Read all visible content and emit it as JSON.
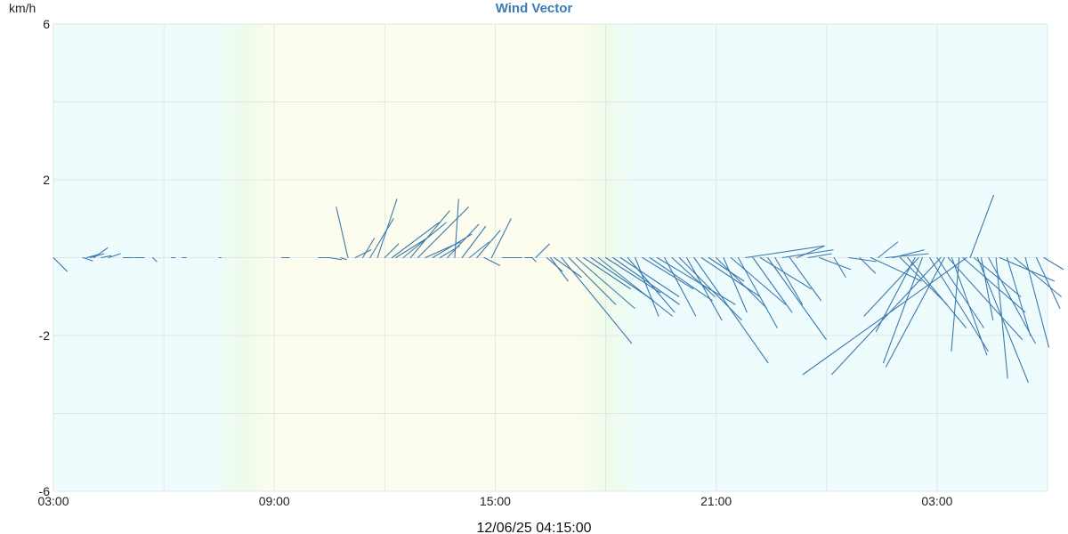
{
  "chart_data": {
    "type": "vector",
    "title": "Wind Vector",
    "ylabel": "km/h",
    "ylim": [
      -6,
      6
    ],
    "y_ticks": [
      "6",
      "2",
      "-2",
      "-6"
    ],
    "y_tick_values": [
      6,
      2,
      -2,
      -6
    ],
    "x_ticks": [
      "03:00",
      "09:00",
      "15:00",
      "21:00",
      "03:00"
    ],
    "x_tick_hours": [
      0,
      6,
      12,
      18,
      24
    ],
    "x_range_hours": [
      0,
      27.0
    ],
    "timestamp": "12/06/25 04:15:00",
    "grid": true,
    "day_period_hours": [
      6.0,
      14.0
    ],
    "series_color": "#3d79ad",
    "background_colors": {
      "night": "#eefcfd",
      "day": "#fdfdef",
      "twilight": "#eefbe9",
      "grid": "#e3e6e8"
    },
    "vectors": [
      {
        "t": 0.0,
        "u": 0.35,
        "v": -0.35
      },
      {
        "t": 0.8,
        "u": 0.25,
        "v": -0.08
      },
      {
        "t": 0.9,
        "u": 0.3,
        "v": 0.08
      },
      {
        "t": 1.0,
        "u": 0.35,
        "v": 0.1
      },
      {
        "t": 1.1,
        "u": 0.35,
        "v": 0.25
      },
      {
        "t": 1.3,
        "u": 0.25,
        "v": 0.05
      },
      {
        "t": 1.5,
        "u": 0.3,
        "v": 0.1
      },
      {
        "t": 1.9,
        "u": 0.25,
        "v": 0.0
      },
      {
        "t": 2.2,
        "u": 0.25,
        "v": 0.0
      },
      {
        "t": 2.7,
        "u": 0.1,
        "v": -0.1
      },
      {
        "t": 3.2,
        "u": 0.1,
        "v": 0.0
      },
      {
        "t": 3.5,
        "u": 0.1,
        "v": 0.0
      },
      {
        "t": 4.5,
        "u": 0.05,
        "v": 0.0
      },
      {
        "t": 6.2,
        "u": 0.2,
        "v": 0.0
      },
      {
        "t": 7.2,
        "u": 0.3,
        "v": 0.0
      },
      {
        "t": 7.5,
        "u": 0.3,
        "v": -0.05
      },
      {
        "t": 7.8,
        "u": 0.15,
        "v": -0.05
      },
      {
        "t": 8.0,
        "u": -0.3,
        "v": 1.3
      },
      {
        "t": 8.2,
        "u": 0.4,
        "v": 0.2
      },
      {
        "t": 8.4,
        "u": 0.3,
        "v": 0.5
      },
      {
        "t": 8.6,
        "u": 0.6,
        "v": 1.0
      },
      {
        "t": 8.8,
        "u": 0.5,
        "v": 1.5
      },
      {
        "t": 9.0,
        "u": 0.35,
        "v": 0.35
      },
      {
        "t": 9.2,
        "u": 1.2,
        "v": 0.9
      },
      {
        "t": 9.3,
        "u": 0.8,
        "v": 0.5
      },
      {
        "t": 9.5,
        "u": 1.1,
        "v": 0.9
      },
      {
        "t": 9.7,
        "u": 1.0,
        "v": 1.2
      },
      {
        "t": 9.9,
        "u": 1.3,
        "v": 1.3
      },
      {
        "t": 10.1,
        "u": 0.9,
        "v": 0.4
      },
      {
        "t": 10.3,
        "u": 1.0,
        "v": 0.6
      },
      {
        "t": 10.5,
        "u": 0.5,
        "v": 0.3
      },
      {
        "t": 10.7,
        "u": 0.8,
        "v": 0.85
      },
      {
        "t": 10.9,
        "u": 0.1,
        "v": 1.5
      },
      {
        "t": 11.1,
        "u": 0.6,
        "v": 0.8
      },
      {
        "t": 11.3,
        "u": 0.5,
        "v": 0.4
      },
      {
        "t": 11.5,
        "u": 0.6,
        "v": 0.7
      },
      {
        "t": 11.7,
        "u": 0.4,
        "v": -0.2
      },
      {
        "t": 11.9,
        "u": 0.5,
        "v": 1.0
      },
      {
        "t": 12.2,
        "u": 0.3,
        "v": 0.0
      },
      {
        "t": 12.4,
        "u": 0.3,
        "v": 0.0
      },
      {
        "t": 12.8,
        "u": 0.2,
        "v": 0.0
      },
      {
        "t": 13.0,
        "u": 0.1,
        "v": -0.1
      },
      {
        "t": 13.1,
        "u": 0.35,
        "v": 0.35
      },
      {
        "t": 13.4,
        "u": 0.4,
        "v": -0.35
      },
      {
        "t": 13.5,
        "u": 0.45,
        "v": -0.6
      },
      {
        "t": 13.6,
        "u": 0.7,
        "v": -0.5
      },
      {
        "t": 13.8,
        "u": 1.8,
        "v": -2.2
      },
      {
        "t": 14.0,
        "u": 1.2,
        "v": -1.2
      },
      {
        "t": 14.2,
        "u": 1.5,
        "v": -1.3
      },
      {
        "t": 14.4,
        "u": 1.2,
        "v": -0.8
      },
      {
        "t": 14.6,
        "u": 1.6,
        "v": -1.1
      },
      {
        "t": 14.8,
        "u": 1.9,
        "v": -1.5
      },
      {
        "t": 15.0,
        "u": 1.4,
        "v": -0.9
      },
      {
        "t": 15.2,
        "u": 1.7,
        "v": -1.2
      },
      {
        "t": 15.4,
        "u": 1.5,
        "v": -1.0
      },
      {
        "t": 15.6,
        "u": 1.2,
        "v": -1.4
      },
      {
        "t": 15.8,
        "u": 0.6,
        "v": -1.5
      },
      {
        "t": 16.0,
        "u": 1.3,
        "v": -0.8
      },
      {
        "t": 16.2,
        "u": 1.6,
        "v": -1.1
      },
      {
        "t": 16.4,
        "u": 2.0,
        "v": -1.2
      },
      {
        "t": 16.6,
        "u": 0.8,
        "v": -1.5
      },
      {
        "t": 16.8,
        "u": 1.1,
        "v": -1.0
      },
      {
        "t": 17.0,
        "u": 1.6,
        "v": -1.6
      },
      {
        "t": 17.2,
        "u": 0.9,
        "v": -1.6
      },
      {
        "t": 17.4,
        "u": 1.9,
        "v": -2.7
      },
      {
        "t": 17.6,
        "u": 1.5,
        "v": -1.0
      },
      {
        "t": 17.8,
        "u": 0.9,
        "v": -0.6
      },
      {
        "t": 18.0,
        "u": 1.3,
        "v": -1.3
      },
      {
        "t": 18.2,
        "u": 0.6,
        "v": -1.4
      },
      {
        "t": 18.4,
        "u": 1.4,
        "v": -1.2
      },
      {
        "t": 18.6,
        "u": 1.0,
        "v": -1.8
      },
      {
        "t": 18.8,
        "u": 2.0,
        "v": 0.3
      },
      {
        "t": 19.0,
        "u": 1.0,
        "v": -1.4
      },
      {
        "t": 19.2,
        "u": 1.3,
        "v": -0.8
      },
      {
        "t": 19.4,
        "u": 1.5,
        "v": -2.1
      },
      {
        "t": 19.6,
        "u": 0.7,
        "v": -1.2
      },
      {
        "t": 19.8,
        "u": 1.3,
        "v": 0.2
      },
      {
        "t": 20.0,
        "u": 0.8,
        "v": -1.1
      },
      {
        "t": 20.2,
        "u": 0.7,
        "v": 0.3
      },
      {
        "t": 20.5,
        "u": 0.6,
        "v": 0.1
      },
      {
        "t": 20.8,
        "u": 0.8,
        "v": -0.3
      },
      {
        "t": 21.2,
        "u": 0.3,
        "v": -0.5
      },
      {
        "t": 21.6,
        "u": 0.7,
        "v": -0.1
      },
      {
        "t": 21.9,
        "u": 0.4,
        "v": -0.4
      },
      {
        "t": 22.2,
        "u": 1.3,
        "v": -0.6
      },
      {
        "t": 22.4,
        "u": 0.5,
        "v": 0.4
      },
      {
        "t": 22.6,
        "u": 1.1,
        "v": 0.1
      },
      {
        "t": 22.8,
        "u": 0.8,
        "v": 0.2
      },
      {
        "t": 23.0,
        "u": 1.2,
        "v": -1.2
      },
      {
        "t": 23.2,
        "u": 1.5,
        "v": -1.8
      },
      {
        "t": 23.4,
        "u": -1.0,
        "v": -1.9
      },
      {
        "t": 23.5,
        "u": -1.4,
        "v": -1.5
      },
      {
        "t": 23.6,
        "u": -1.0,
        "v": -2.7
      },
      {
        "t": 23.8,
        "u": 1.5,
        "v": -2.4
      },
      {
        "t": 24.0,
        "u": 1.2,
        "v": -1.8
      },
      {
        "t": 24.1,
        "u": -2.8,
        "v": -3.0
      },
      {
        "t": 24.2,
        "u": -1.5,
        "v": -2.8
      },
      {
        "t": 24.3,
        "u": 1.9,
        "v": -2.1
      },
      {
        "t": 24.4,
        "u": 0.9,
        "v": -2.5
      },
      {
        "t": 24.6,
        "u": -0.2,
        "v": -2.4
      },
      {
        "t": 24.7,
        "u": 1.6,
        "v": -1.4
      },
      {
        "t": 24.8,
        "u": -4.2,
        "v": -3.0
      },
      {
        "t": 24.9,
        "u": 0.6,
        "v": 1.6
      },
      {
        "t": 25.0,
        "u": 1.2,
        "v": -1.0
      },
      {
        "t": 25.1,
        "u": 1.3,
        "v": -3.2
      },
      {
        "t": 25.2,
        "u": 0.3,
        "v": -1.6
      },
      {
        "t": 25.4,
        "u": 1.2,
        "v": -2.2
      },
      {
        "t": 25.6,
        "u": 0.3,
        "v": -3.1
      },
      {
        "t": 25.7,
        "u": 1.4,
        "v": -0.6
      },
      {
        "t": 25.9,
        "u": 0.6,
        "v": -2.0
      },
      {
        "t": 26.1,
        "u": 1.2,
        "v": -1.0
      },
      {
        "t": 26.4,
        "u": 0.6,
        "v": -2.3
      },
      {
        "t": 26.7,
        "u": 0.6,
        "v": -1.3
      },
      {
        "t": 26.9,
        "u": 0.5,
        "v": -0.3
      }
    ]
  }
}
